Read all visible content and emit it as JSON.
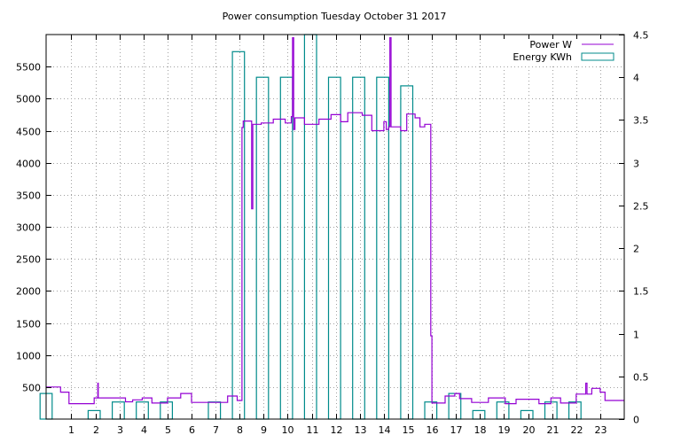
{
  "chart_data": {
    "type": "line",
    "title": "Power consumption Tuesday October 31 2017",
    "xlabel": "",
    "ylabel": "",
    "y2label": "",
    "xlim": [
      -0.05,
      24.0
    ],
    "ylim": [
      0,
      6000
    ],
    "y2lim": [
      0,
      4.5
    ],
    "grid": true,
    "legend_position": "top-right",
    "x_ticks": [
      1,
      2,
      3,
      4,
      5,
      6,
      7,
      8,
      9,
      10,
      11,
      12,
      13,
      14,
      15,
      16,
      17,
      18,
      19,
      20,
      21,
      22,
      23
    ],
    "x_tick_labels": [
      "1",
      "2",
      "3",
      "4",
      "5",
      "6",
      "7",
      "8",
      "9",
      "10",
      "11",
      "12",
      "13",
      "14",
      "15",
      "16",
      "17",
      "18",
      "19",
      "20",
      "21",
      "22",
      "23"
    ],
    "y_ticks": [
      500,
      1000,
      1500,
      2000,
      2500,
      3000,
      3500,
      4000,
      4500,
      5000,
      5500
    ],
    "y_tick_labels": [
      "500",
      "1000",
      "1500",
      "2000",
      "2500",
      "3000",
      "3500",
      "4000",
      "4500",
      "5000",
      "5500"
    ],
    "y2_ticks": [
      0,
      0.5,
      1,
      1.5,
      2,
      2.5,
      3,
      3.5,
      4,
      4.5
    ],
    "y2_tick_labels": [
      "0",
      "0.5",
      "1",
      "1.5",
      "2",
      "2.5",
      "3",
      "3.5",
      "4",
      "4.5"
    ],
    "series": [
      {
        "name": "Power W",
        "axis": "y1",
        "style": "steps",
        "color": "#9400d3",
        "points": [
          [
            -0.05,
            500
          ],
          [
            0.5,
            500
          ],
          [
            0.55,
            420
          ],
          [
            0.9,
            240
          ],
          [
            1.9,
            240
          ],
          [
            1.95,
            330
          ],
          [
            2.08,
            330
          ],
          [
            2.1,
            560
          ],
          [
            2.12,
            330
          ],
          [
            3.2,
            330
          ],
          [
            3.25,
            270
          ],
          [
            3.5,
            270
          ],
          [
            3.55,
            300
          ],
          [
            3.9,
            300
          ],
          [
            3.95,
            330
          ],
          [
            4.3,
            330
          ],
          [
            4.35,
            250
          ],
          [
            4.95,
            250
          ],
          [
            5.0,
            330
          ],
          [
            5.5,
            330
          ],
          [
            5.55,
            400
          ],
          [
            5.95,
            400
          ],
          [
            6.0,
            260
          ],
          [
            7.45,
            260
          ],
          [
            7.5,
            360
          ],
          [
            7.85,
            360
          ],
          [
            7.9,
            290
          ],
          [
            8.08,
            290
          ],
          [
            8.1,
            4550
          ],
          [
            8.15,
            4650
          ],
          [
            8.45,
            4650
          ],
          [
            8.5,
            3280
          ],
          [
            8.55,
            4600
          ],
          [
            8.9,
            4620
          ],
          [
            9.4,
            4680
          ],
          [
            9.9,
            4620
          ],
          [
            10.15,
            4720
          ],
          [
            10.2,
            5950
          ],
          [
            10.25,
            4520
          ],
          [
            10.3,
            4700
          ],
          [
            10.7,
            4600
          ],
          [
            11.3,
            4680
          ],
          [
            11.8,
            4750
          ],
          [
            12.2,
            4640
          ],
          [
            12.5,
            4780
          ],
          [
            13.1,
            4740
          ],
          [
            13.5,
            4500
          ],
          [
            14.0,
            4640
          ],
          [
            14.1,
            4520
          ],
          [
            14.2,
            4560
          ],
          [
            14.25,
            5950
          ],
          [
            14.3,
            4560
          ],
          [
            14.7,
            4500
          ],
          [
            14.95,
            4760
          ],
          [
            15.3,
            4700
          ],
          [
            15.5,
            4560
          ],
          [
            15.7,
            4600
          ],
          [
            15.9,
            4600
          ],
          [
            15.95,
            1300
          ],
          [
            16.0,
            250
          ],
          [
            16.5,
            250
          ],
          [
            16.55,
            360
          ],
          [
            16.9,
            360
          ],
          [
            16.95,
            400
          ],
          [
            17.1,
            400
          ],
          [
            17.15,
            320
          ],
          [
            17.6,
            320
          ],
          [
            17.65,
            260
          ],
          [
            18.3,
            260
          ],
          [
            18.35,
            330
          ],
          [
            19.0,
            330
          ],
          [
            19.05,
            240
          ],
          [
            19.45,
            240
          ],
          [
            19.5,
            310
          ],
          [
            20.4,
            310
          ],
          [
            20.45,
            240
          ],
          [
            20.9,
            240
          ],
          [
            20.95,
            330
          ],
          [
            21.3,
            330
          ],
          [
            21.35,
            250
          ],
          [
            21.95,
            250
          ],
          [
            22.0,
            390
          ],
          [
            22.35,
            390
          ],
          [
            22.4,
            560
          ],
          [
            22.45,
            390
          ],
          [
            22.6,
            390
          ],
          [
            22.65,
            480
          ],
          [
            22.95,
            480
          ],
          [
            23.0,
            420
          ],
          [
            23.15,
            420
          ],
          [
            23.2,
            290
          ],
          [
            24.0,
            290
          ]
        ]
      },
      {
        "name": "Energy KWh",
        "axis": "y2",
        "style": "bars",
        "color": "#008b8b",
        "bars": [
          {
            "hour": 0,
            "value": 0.3
          },
          {
            "hour": 1,
            "value": 0
          },
          {
            "hour": 2,
            "value": 0.1
          },
          {
            "hour": 3,
            "value": 0.2
          },
          {
            "hour": 4,
            "value": 0.2
          },
          {
            "hour": 5,
            "value": 0.2
          },
          {
            "hour": 6,
            "value": 0
          },
          {
            "hour": 7,
            "value": 0.2
          },
          {
            "hour": 8,
            "value": 4.3
          },
          {
            "hour": 9,
            "value": 4.0
          },
          {
            "hour": 10,
            "value": 4.0
          },
          {
            "hour": 11,
            "value": 4.6
          },
          {
            "hour": 12,
            "value": 4.0
          },
          {
            "hour": 13,
            "value": 4.0
          },
          {
            "hour": 14,
            "value": 4.0
          },
          {
            "hour": 15,
            "value": 3.9
          },
          {
            "hour": 16,
            "value": 0.2
          },
          {
            "hour": 17,
            "value": 0.3
          },
          {
            "hour": 18,
            "value": 0.1
          },
          {
            "hour": 19,
            "value": 0.2
          },
          {
            "hour": 20,
            "value": 0.1
          },
          {
            "hour": 21,
            "value": 0.2
          },
          {
            "hour": 22,
            "value": 0.2
          },
          {
            "hour": 23,
            "value": 0
          }
        ]
      }
    ]
  }
}
